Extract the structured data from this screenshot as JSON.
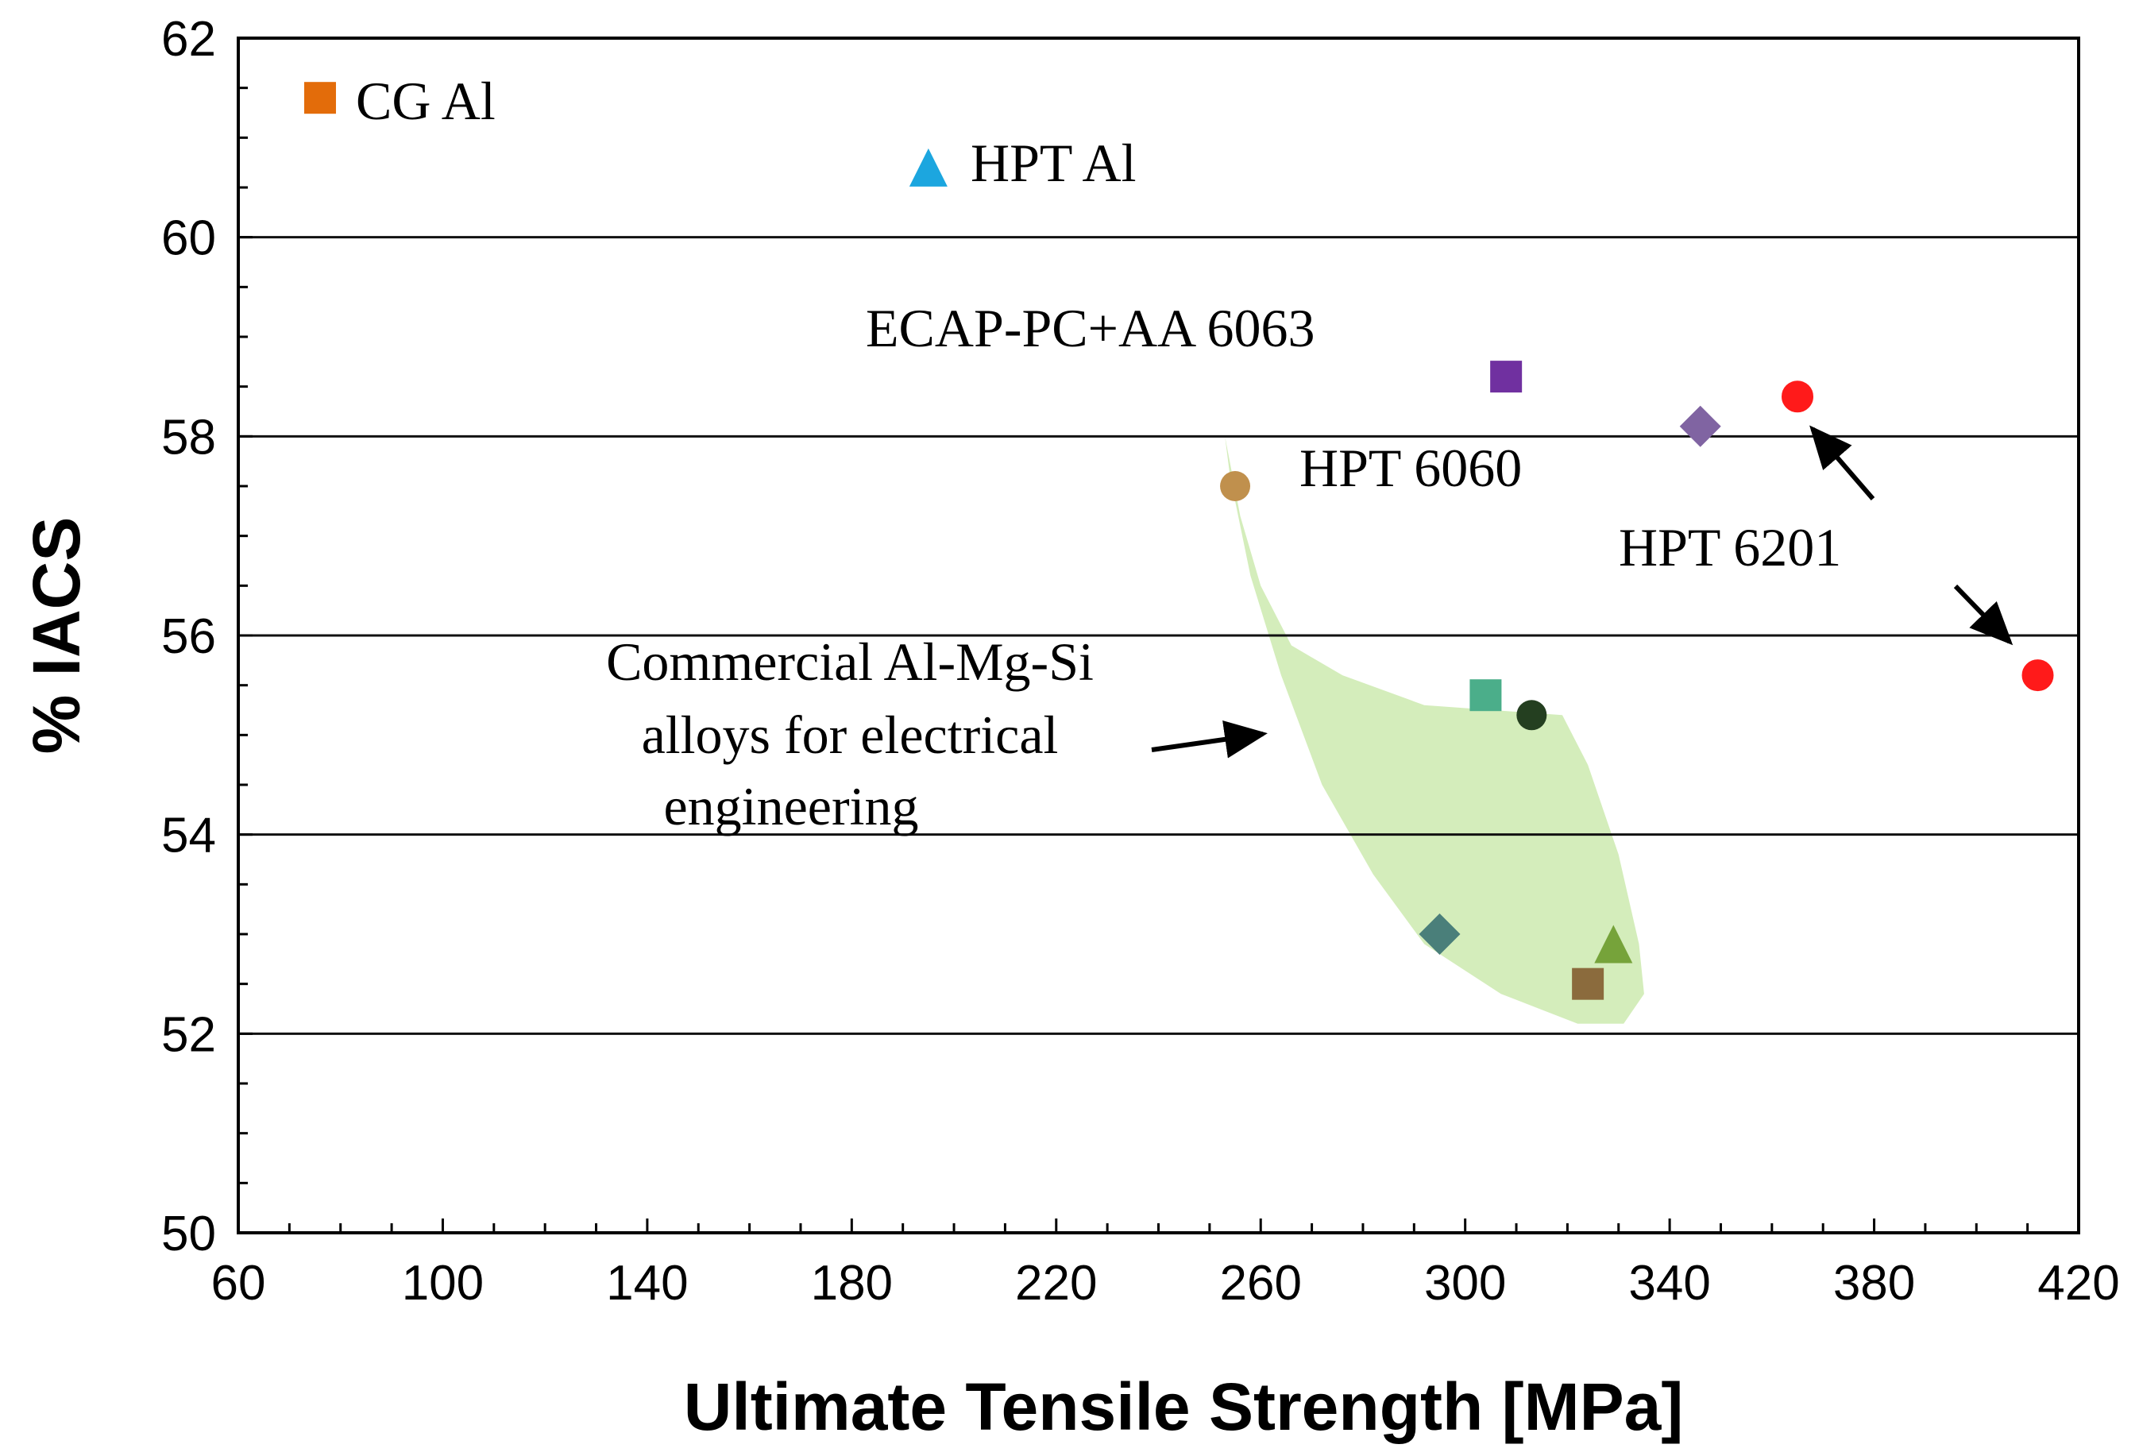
{
  "chart_data": {
    "type": "scatter",
    "title": "",
    "xlabel": "Ultimate Tensile Strength [MPa]",
    "ylabel": "% IACS",
    "xlim": [
      60,
      420
    ],
    "ylim": [
      50,
      62
    ],
    "x_ticks": [
      60,
      100,
      140,
      180,
      220,
      260,
      300,
      340,
      380,
      420
    ],
    "y_ticks": [
      50,
      52,
      54,
      56,
      58,
      60,
      62
    ],
    "grid": "horizontal lines at 52, 54, 56, 58, 60",
    "points": [
      {
        "id": "cg-al",
        "label": "CG Al",
        "x": 76,
        "y": 61.4,
        "marker": "square",
        "color": "#E36C0A"
      },
      {
        "id": "hpt-al",
        "label": "HPT Al",
        "x": 195,
        "y": 60.7,
        "marker": "triangle",
        "color": "#1CA6DF"
      },
      {
        "id": "ecap-6063",
        "label": "ECAP-PC+AA 6063",
        "x": 308,
        "y": 58.6,
        "marker": "square",
        "color": "#7030A0"
      },
      {
        "id": "hpt-6060",
        "label": "HPT 6060",
        "x": 346,
        "y": 58.1,
        "marker": "diamond",
        "color": "#8064A2"
      },
      {
        "id": "hpt-6201-a",
        "label": "HPT 6201",
        "x": 365,
        "y": 58.4,
        "marker": "circle",
        "color": "#FF1A1A"
      },
      {
        "id": "hpt-6201-b",
        "label": "HPT 6201",
        "x": 412,
        "y": 55.6,
        "marker": "circle",
        "color": "#FF1A1A"
      },
      {
        "id": "commercial-1",
        "label": "Commercial Al-Mg-Si",
        "x": 255,
        "y": 57.5,
        "marker": "circle",
        "color": "#C0904D"
      },
      {
        "id": "commercial-2",
        "label": "Commercial Al-Mg-Si",
        "x": 304,
        "y": 55.4,
        "marker": "square",
        "color": "#4BAE8A"
      },
      {
        "id": "commercial-3",
        "label": "Commercial Al-Mg-Si",
        "x": 313,
        "y": 55.2,
        "marker": "circle",
        "color": "#243F20"
      },
      {
        "id": "commercial-4",
        "label": "Commercial Al-Mg-Si",
        "x": 295,
        "y": 53.0,
        "marker": "diamond",
        "color": "#4A7F7A"
      },
      {
        "id": "commercial-5",
        "label": "Commercial Al-Mg-Si",
        "x": 324,
        "y": 52.5,
        "marker": "square",
        "color": "#8B6B3D"
      },
      {
        "id": "commercial-6",
        "label": "Commercial Al-Mg-Si",
        "x": 329,
        "y": 52.9,
        "marker": "triangle",
        "color": "#76A33A"
      }
    ],
    "region": {
      "label": "Commercial Al-Mg-Si alloys for electrical engineering",
      "color": "#D4EDBB",
      "outline": [
        [
          253,
          58.0
        ],
        [
          256,
          57.2
        ],
        [
          260,
          56.5
        ],
        [
          266,
          55.9
        ],
        [
          276,
          55.6
        ],
        [
          292,
          55.3
        ],
        [
          319,
          55.2
        ],
        [
          324,
          54.7
        ],
        [
          330,
          53.8
        ],
        [
          334,
          52.9
        ],
        [
          335,
          52.4
        ],
        [
          331,
          52.1
        ],
        [
          322,
          52.1
        ],
        [
          307,
          52.4
        ],
        [
          292,
          52.9
        ],
        [
          282,
          53.6
        ],
        [
          272,
          54.5
        ],
        [
          264,
          55.6
        ],
        [
          258,
          56.6
        ],
        [
          254,
          57.6
        ]
      ]
    },
    "annotations": {
      "cg_al": "CG Al",
      "hpt_al": "HPT Al",
      "ecap": "ECAP-PC+AA 6063",
      "hpt_6060": "HPT 6060",
      "hpt_6201": "HPT 6201",
      "commercial_line1": "Commercial Al-Mg-Si",
      "commercial_line2": "alloys for electrical",
      "commercial_line3": "engineering"
    }
  }
}
